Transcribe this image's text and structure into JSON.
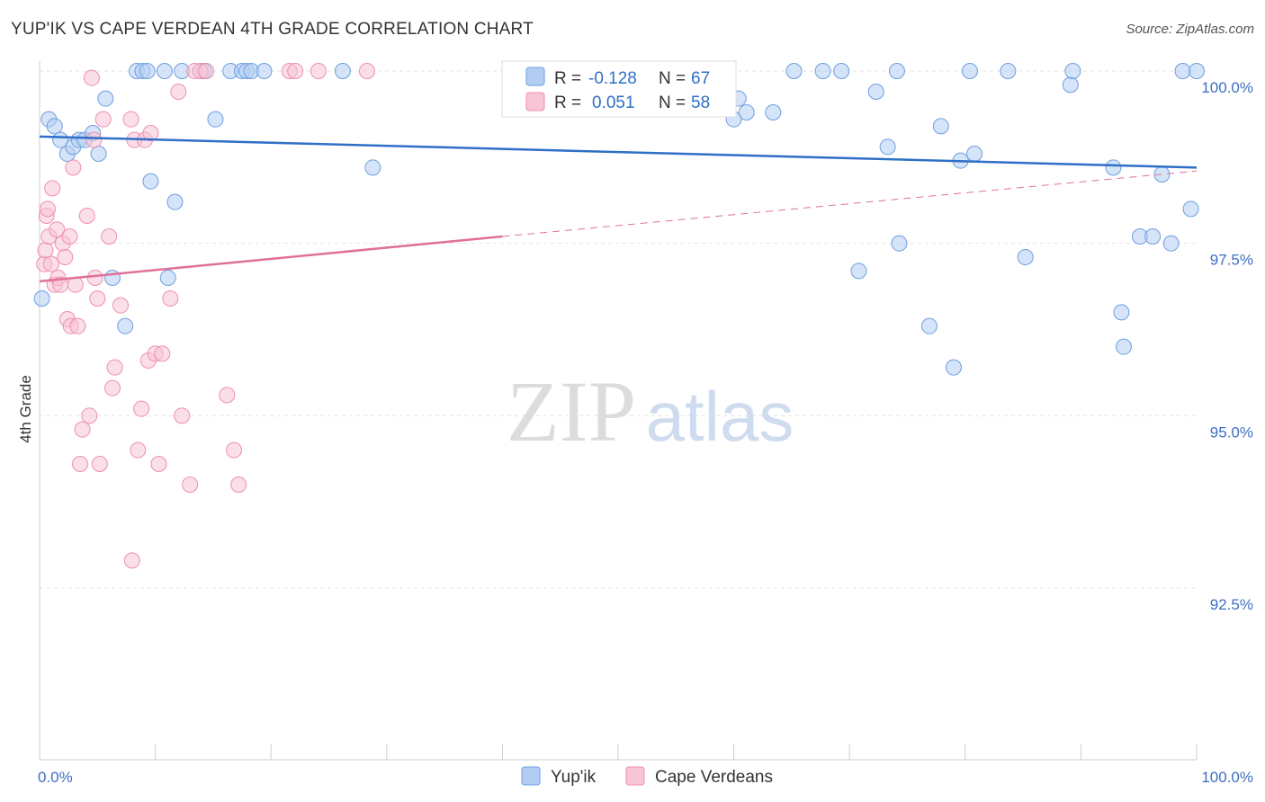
{
  "title": "YUP'IK VS CAPE VERDEAN 4TH GRADE CORRELATION CHART",
  "source": "Source: ZipAtlas.com",
  "watermark": {
    "zip": "ZIP",
    "atlas": "atlas"
  },
  "chart_data": {
    "type": "scatter",
    "ylabel": "4th Grade",
    "xlim": [
      0,
      100
    ],
    "ylim": [
      90.0,
      100.3
    ],
    "x_tick_labels": [
      {
        "value": 0,
        "label": "0.0%"
      },
      {
        "value": 100,
        "label": "100.0%"
      }
    ],
    "y_ticks": [
      {
        "value": 100.0,
        "label": "100.0%"
      },
      {
        "value": 97.5,
        "label": "97.5%"
      },
      {
        "value": 95.0,
        "label": "95.0%"
      },
      {
        "value": 92.5,
        "label": "92.5%"
      }
    ],
    "grid": true,
    "legend": {
      "position": "top-center",
      "entries": [
        {
          "r_label": "R =",
          "r_value": "-0.128",
          "n_label": "N =",
          "n_value": "67"
        },
        {
          "r_label": "R =",
          "r_value": "0.051",
          "n_label": "N =",
          "n_value": "58"
        }
      ]
    },
    "series": [
      {
        "name": "Yup'ik",
        "color": "#6f9fe0",
        "fill": "#b3cdf2",
        "line_color": "#2f6fc7",
        "trend": {
          "x": [
            0,
            100
          ],
          "y": [
            99.05,
            98.6
          ]
        },
        "points": [
          [
            0.2,
            96.7
          ],
          [
            0.8,
            99.3
          ],
          [
            1.3,
            99.2
          ],
          [
            1.8,
            99.0
          ],
          [
            2.4,
            98.8
          ],
          [
            2.9,
            98.9
          ],
          [
            3.4,
            99.0
          ],
          [
            3.9,
            99.0
          ],
          [
            4.6,
            99.1
          ],
          [
            5.1,
            98.8
          ],
          [
            5.7,
            99.6
          ],
          [
            6.3,
            97.0
          ],
          [
            7.4,
            96.3
          ],
          [
            8.4,
            100.0
          ],
          [
            8.9,
            100.0
          ],
          [
            9.3,
            100.0
          ],
          [
            9.6,
            98.4
          ],
          [
            10.8,
            100.0
          ],
          [
            11.1,
            97.0
          ],
          [
            11.7,
            98.1
          ],
          [
            12.3,
            100.0
          ],
          [
            14.2,
            100.0
          ],
          [
            15.2,
            99.3
          ],
          [
            16.5,
            100.0
          ],
          [
            17.5,
            100.0
          ],
          [
            17.9,
            100.0
          ],
          [
            18.3,
            100.0
          ],
          [
            19.4,
            100.0
          ],
          [
            26.2,
            100.0
          ],
          [
            28.8,
            98.6
          ],
          [
            41.0,
            100.0
          ],
          [
            44.5,
            100.0
          ],
          [
            46.3,
            100.0
          ],
          [
            50.9,
            100.0
          ],
          [
            52.3,
            100.0
          ],
          [
            60.0,
            99.3
          ],
          [
            60.4,
            99.6
          ],
          [
            61.1,
            99.4
          ],
          [
            63.4,
            99.4
          ],
          [
            65.2,
            100.0
          ],
          [
            67.7,
            100.0
          ],
          [
            69.3,
            100.0
          ],
          [
            70.8,
            97.1
          ],
          [
            72.3,
            99.7
          ],
          [
            73.3,
            98.9
          ],
          [
            74.1,
            100.0
          ],
          [
            74.3,
            97.5
          ],
          [
            76.9,
            96.3
          ],
          [
            77.9,
            99.2
          ],
          [
            79.0,
            95.7
          ],
          [
            79.6,
            98.7
          ],
          [
            80.4,
            100.0
          ],
          [
            80.8,
            98.8
          ],
          [
            83.7,
            100.0
          ],
          [
            85.2,
            97.3
          ],
          [
            89.1,
            99.8
          ],
          [
            89.3,
            100.0
          ],
          [
            92.8,
            98.6
          ],
          [
            93.5,
            96.5
          ],
          [
            93.7,
            96.0
          ],
          [
            95.1,
            97.6
          ],
          [
            96.2,
            97.6
          ],
          [
            97.0,
            98.5
          ],
          [
            97.8,
            97.5
          ],
          [
            98.8,
            100.0
          ],
          [
            99.5,
            98.0
          ],
          [
            100.0,
            100.0
          ]
        ]
      },
      {
        "name": "Cape Verdeans",
        "color": "#ee8fae",
        "fill": "#f8c5d6",
        "line_color": "#e0709a",
        "trend": {
          "x": [
            0,
            40,
            100
          ],
          "y": [
            96.95,
            97.6,
            98.55
          ]
        },
        "points": [
          [
            0.4,
            97.2
          ],
          [
            0.5,
            97.4
          ],
          [
            0.6,
            97.9
          ],
          [
            0.7,
            98.0
          ],
          [
            0.8,
            97.6
          ],
          [
            1.0,
            97.2
          ],
          [
            1.1,
            98.3
          ],
          [
            1.3,
            96.9
          ],
          [
            1.5,
            97.7
          ],
          [
            1.6,
            97.0
          ],
          [
            1.8,
            96.9
          ],
          [
            2.0,
            97.5
          ],
          [
            2.2,
            97.3
          ],
          [
            2.4,
            96.4
          ],
          [
            2.6,
            97.6
          ],
          [
            2.7,
            96.3
          ],
          [
            2.9,
            98.6
          ],
          [
            3.1,
            96.9
          ],
          [
            3.3,
            96.3
          ],
          [
            3.5,
            94.3
          ],
          [
            3.7,
            94.8
          ],
          [
            4.1,
            97.9
          ],
          [
            4.3,
            95.0
          ],
          [
            4.5,
            99.9
          ],
          [
            4.7,
            99.0
          ],
          [
            4.8,
            97.0
          ],
          [
            5.0,
            96.7
          ],
          [
            5.2,
            94.3
          ],
          [
            5.5,
            99.3
          ],
          [
            6.0,
            97.6
          ],
          [
            6.3,
            95.4
          ],
          [
            6.5,
            95.7
          ],
          [
            7.0,
            96.6
          ],
          [
            7.9,
            99.3
          ],
          [
            8.2,
            99.0
          ],
          [
            8.5,
            94.5
          ],
          [
            8.8,
            95.1
          ],
          [
            9.1,
            99.0
          ],
          [
            9.4,
            95.8
          ],
          [
            9.6,
            99.1
          ],
          [
            10.0,
            95.9
          ],
          [
            10.3,
            94.3
          ],
          [
            10.6,
            95.9
          ],
          [
            11.3,
            96.7
          ],
          [
            12.0,
            99.7
          ],
          [
            12.3,
            95.0
          ],
          [
            13.0,
            94.0
          ],
          [
            13.4,
            100.0
          ],
          [
            13.9,
            100.0
          ],
          [
            14.4,
            100.0
          ],
          [
            16.2,
            95.3
          ],
          [
            16.8,
            94.5
          ],
          [
            17.2,
            94.0
          ],
          [
            21.6,
            100.0
          ],
          [
            22.1,
            100.0
          ],
          [
            24.1,
            100.0
          ],
          [
            28.3,
            100.0
          ],
          [
            8.0,
            92.9
          ]
        ]
      }
    ]
  },
  "bottom_legend": [
    "Yup'ik",
    "Cape Verdeans"
  ]
}
